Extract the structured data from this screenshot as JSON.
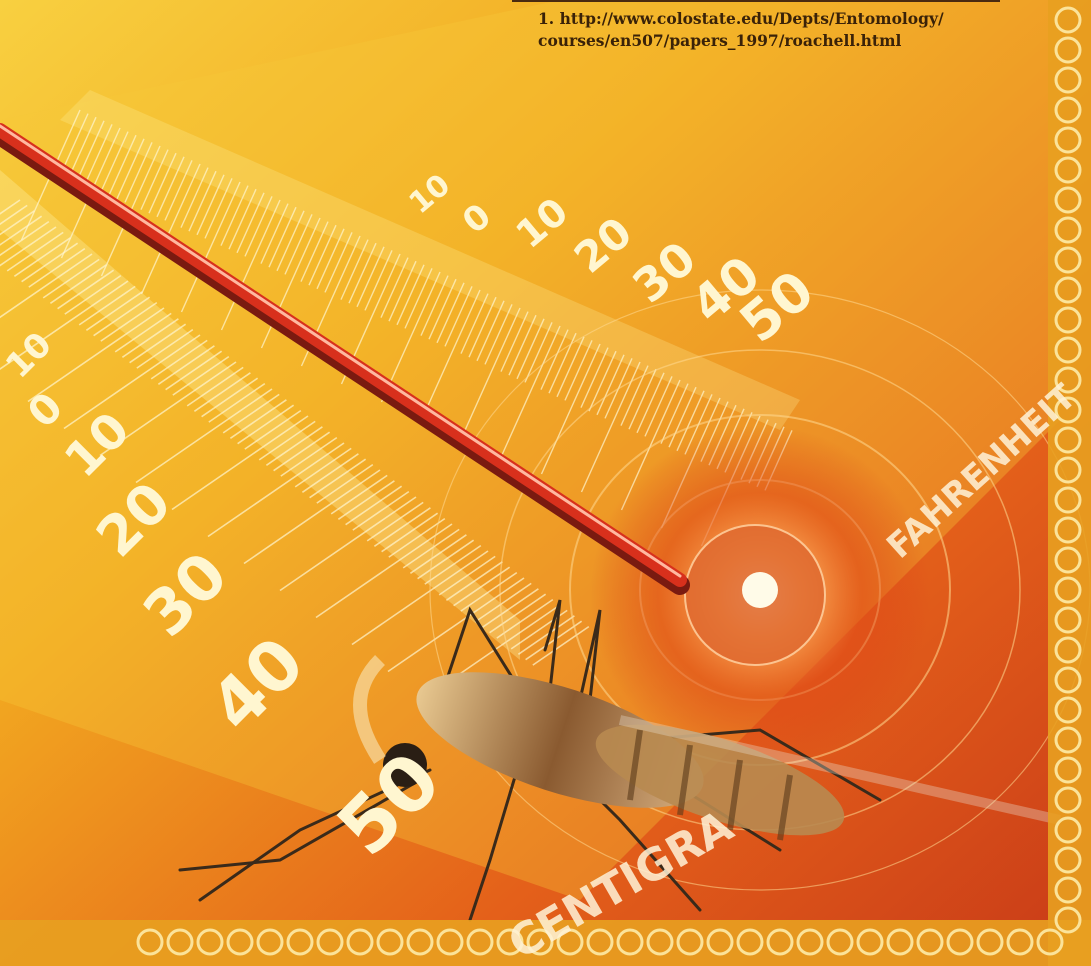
{
  "footnote": {
    "line1": "1. http://www.colostate.edu/Depts/Entomology/",
    "line2": "courses/en507/papers_1997/roachell.html"
  },
  "thermometer": {
    "centigrade_label": "CENTIGRA",
    "fahrenheit_label": "FAHRENHEIT",
    "centigrade_ticks": [
      "10",
      "0",
      "10",
      "20",
      "30",
      "40",
      "50"
    ],
    "fahrenheit_ticks": [
      "10",
      "0",
      "10",
      "20",
      "30",
      "40",
      "50"
    ]
  },
  "colors": {
    "background_yellow": "#f5c21a",
    "background_orange": "#e8731a",
    "background_red": "#d8401a",
    "mercury": "#c8281a",
    "scale_text": "#fff6d0",
    "border_gold": "#f0c060"
  },
  "icons": {
    "mosquito": "mosquito-icon",
    "bulb": "thermometer-bulb-icon"
  }
}
